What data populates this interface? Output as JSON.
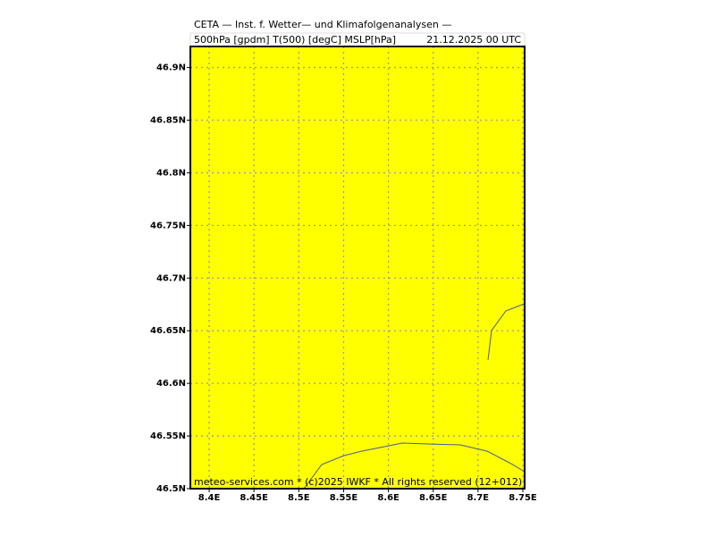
{
  "chart_data": {
    "type": "map",
    "title": "CETA — Inst. f. Wetter— und Klimafolgenanalysen —",
    "subtitle": "500hPa [gpdm] T(500) [degC] MSLP[hPa]",
    "date": "21.12.2025 00 UTC",
    "footer": "meteo-services.com * (c)2025 IWKF * All rights reserved (12+012)",
    "background": "#ffff00",
    "grid": true,
    "xlim": [
      8.379,
      8.752
    ],
    "ylim": [
      46.5,
      46.92
    ],
    "xticks": [
      {
        "value": 8.4,
        "label": "8.4E"
      },
      {
        "value": 8.45,
        "label": "8.45E"
      },
      {
        "value": 8.5,
        "label": "8.5E"
      },
      {
        "value": 8.55,
        "label": "8.55E"
      },
      {
        "value": 8.6,
        "label": "8.6E"
      },
      {
        "value": 8.65,
        "label": "8.65E"
      },
      {
        "value": 8.7,
        "label": "8.7E"
      },
      {
        "value": 8.75,
        "label": "8.75E"
      }
    ],
    "yticks": [
      {
        "value": 46.5,
        "label": "46.5N"
      },
      {
        "value": 46.55,
        "label": "46.55N"
      },
      {
        "value": 46.6,
        "label": "46.6N"
      },
      {
        "value": 46.65,
        "label": "46.65N"
      },
      {
        "value": 46.7,
        "label": "46.7N"
      },
      {
        "value": 46.75,
        "label": "46.75N"
      },
      {
        "value": 46.8,
        "label": "46.8N"
      },
      {
        "value": 46.85,
        "label": "46.85N"
      },
      {
        "value": 46.9,
        "label": "46.9N"
      }
    ]
  }
}
